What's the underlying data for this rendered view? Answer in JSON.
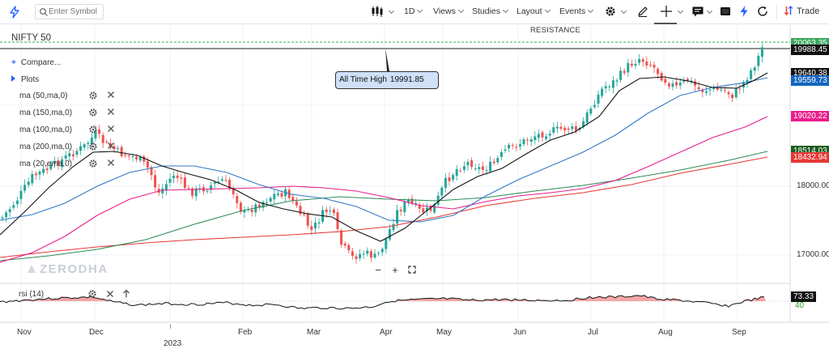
{
  "toolbar": {
    "search_placeholder": "Enter Symbol",
    "interval_label": "1D",
    "views_label": "Views",
    "studies_label": "Studies",
    "layout_label": "Layout",
    "events_label": "Events",
    "trade_label": "Trade"
  },
  "chart": {
    "symbol": "NIFTY 50",
    "resistance_label": "RESISTANCE",
    "callout_label": "All Time High",
    "callout_value": "19991.85",
    "watermark": "ZERODHA",
    "year_label": "2023",
    "colors": {
      "up": "#26a69a",
      "down": "#ef5350",
      "ma_blue": "#2f7ac6",
      "ma_green": "#2e8b57",
      "ma_red": "#e53935",
      "ma_pink": "#e91e8c",
      "ma_black": "#111111"
    }
  },
  "legend": {
    "compare_label": "Compare...",
    "plots_label": "Plots",
    "studies": [
      {
        "label": "ma (50,ma,0)"
      },
      {
        "label": "ma (150,ma,0)"
      },
      {
        "label": "ma (100,ma,0)"
      },
      {
        "label": "ma (200,ma,0)"
      },
      {
        "label": "ma (20,ema,0)"
      }
    ]
  },
  "rsi": {
    "label": "rsi (14)",
    "value": "73.33",
    "level_label": "40"
  },
  "price_labels": [
    {
      "value": "20063.35",
      "color": "#2ca02c"
    },
    {
      "value": "19988.45",
      "color": "#111111"
    },
    {
      "value": "19640.38",
      "color": "#111111"
    },
    {
      "value": "19559.73",
      "color": "#1565c0"
    },
    {
      "value": "19020.22",
      "color": "#e91e8c"
    },
    {
      "value": "18514.03",
      "color": "#1b5e20"
    },
    {
      "value": "18432.94",
      "color": "#e53935"
    }
  ],
  "axis_ticks": [
    "18000.00",
    "17000.00"
  ],
  "x_labels": [
    "Nov",
    "Dec",
    "Feb",
    "Mar",
    "Apr",
    "May",
    "Jun",
    "Jul",
    "Aug",
    "Sep"
  ]
}
